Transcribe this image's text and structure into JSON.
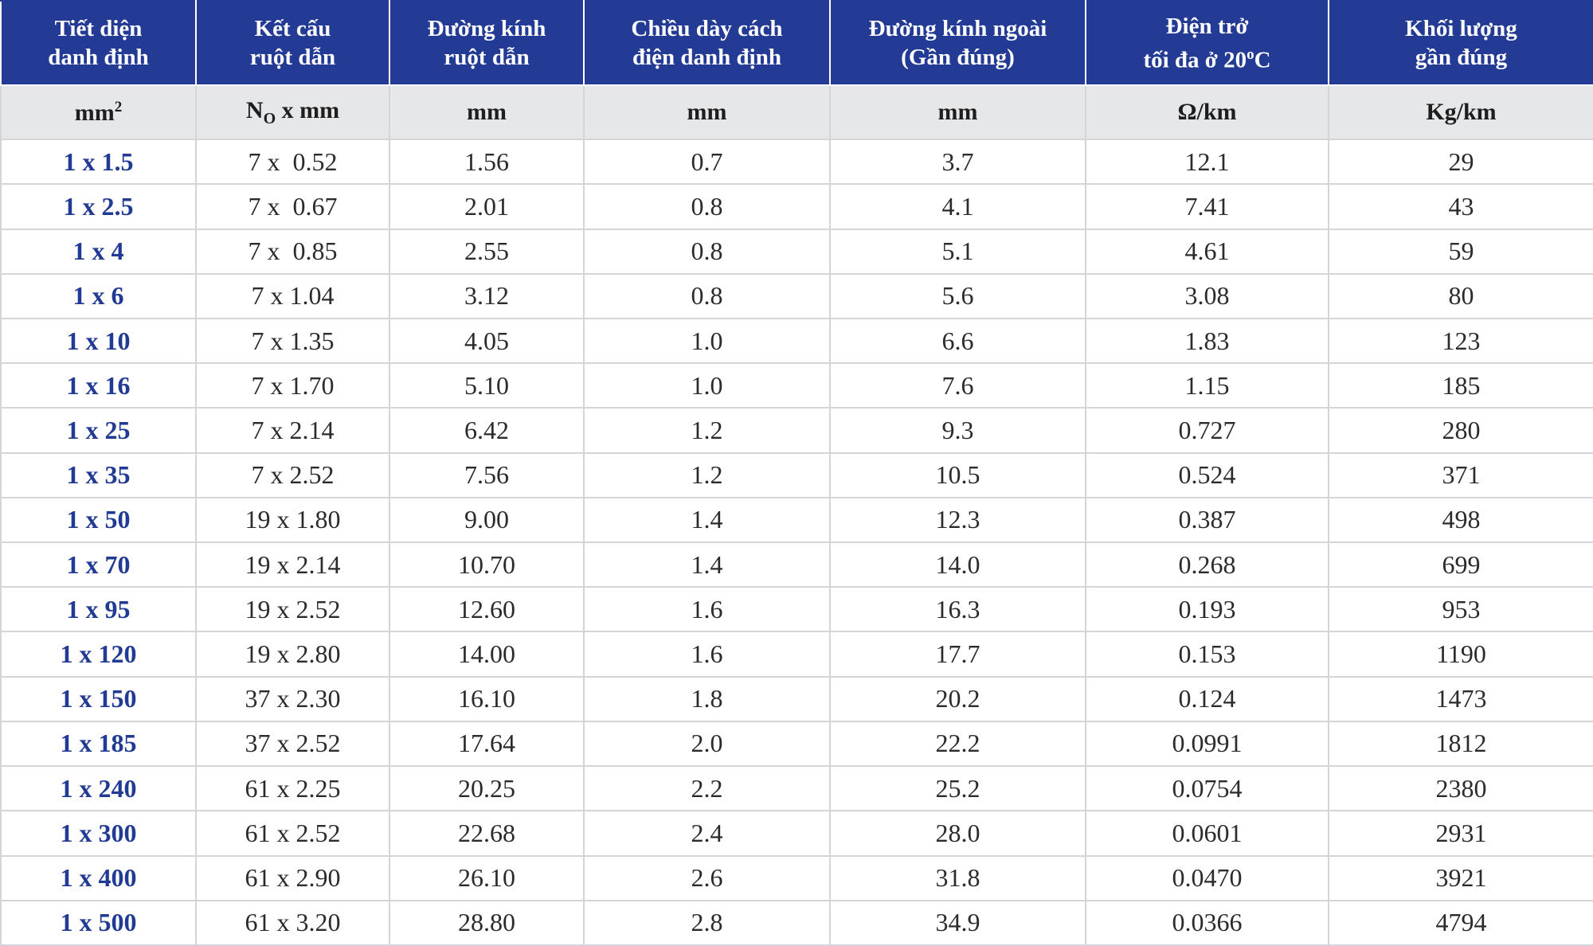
{
  "headers": [
    "Tiết diện\ndanh định",
    "Kết cấu\nruột dẫn",
    "Đường kính\nruột dẫn",
    "Chiều dày cách\nđiện danh định",
    "Đường kính ngoài\n(Gần đúng)",
    "Điện trở\ntối đa ở 20",
    "Khối lượng\ngần đúng"
  ],
  "headers_extra": {
    "degree_sup": "o",
    "celsius": "C"
  },
  "units": {
    "area_base": "mm",
    "area_sup": "2",
    "structure_n": "N",
    "structure_sub": "O",
    "structure_rest": " x mm",
    "diameter": "mm",
    "thickness": "mm",
    "outer": "mm",
    "resistance": "Ω/km",
    "weight": "Kg/km"
  },
  "rows": [
    [
      "1 x 1.5",
      "7 x  0.52",
      "1.56",
      "0.7",
      "3.7",
      "12.1",
      "29"
    ],
    [
      "1 x 2.5",
      "7 x  0.67",
      "2.01",
      "0.8",
      "4.1",
      "7.41",
      "43"
    ],
    [
      "1 x 4",
      "7 x  0.85",
      "2.55",
      "0.8",
      "5.1",
      "4.61",
      "59"
    ],
    [
      "1 x 6",
      "7 x 1.04",
      "3.12",
      "0.8",
      "5.6",
      "3.08",
      "80"
    ],
    [
      "1 x 10",
      "7 x 1.35",
      "4.05",
      "1.0",
      "6.6",
      "1.83",
      "123"
    ],
    [
      "1 x 16",
      "7 x 1.70",
      "5.10",
      "1.0",
      "7.6",
      "1.15",
      "185"
    ],
    [
      "1 x 25",
      "7 x 2.14",
      "6.42",
      "1.2",
      "9.3",
      "0.727",
      "280"
    ],
    [
      "1 x 35",
      "7 x 2.52",
      "7.56",
      "1.2",
      "10.5",
      "0.524",
      "371"
    ],
    [
      "1 x 50",
      "19 x 1.80",
      "9.00",
      "1.4",
      "12.3",
      "0.387",
      "498"
    ],
    [
      "1 x 70",
      "19 x 2.14",
      "10.70",
      "1.4",
      "14.0",
      "0.268",
      "699"
    ],
    [
      "1 x 95",
      "19 x 2.52",
      "12.60",
      "1.6",
      "16.3",
      "0.193",
      "953"
    ],
    [
      "1 x 120",
      "19 x 2.80",
      "14.00",
      "1.6",
      "17.7",
      "0.153",
      "1190"
    ],
    [
      "1 x 150",
      "37 x 2.30",
      "16.10",
      "1.8",
      "20.2",
      "0.124",
      "1473"
    ],
    [
      "1 x 185",
      "37 x 2.52",
      "17.64",
      "2.0",
      "22.2",
      "0.0991",
      "1812"
    ],
    [
      "1 x 240",
      "61 x 2.25",
      "20.25",
      "2.2",
      "25.2",
      "0.0754",
      "2380"
    ],
    [
      "1 x 300",
      "61 x 2.52",
      "22.68",
      "2.4",
      "28.0",
      "0.0601",
      "2931"
    ],
    [
      "1 x 400",
      "61 x 2.90",
      "26.10",
      "2.6",
      "31.8",
      "0.0470",
      "3921"
    ],
    [
      "1 x 500",
      "61 x 3.20",
      "28.80",
      "2.8",
      "34.9",
      "0.0366",
      "4794"
    ]
  ],
  "colors": {
    "header_bg": "#243b95",
    "units_bg": "#e6e7e9",
    "size_text": "#213a93",
    "grid": "#d3d5d9"
  }
}
